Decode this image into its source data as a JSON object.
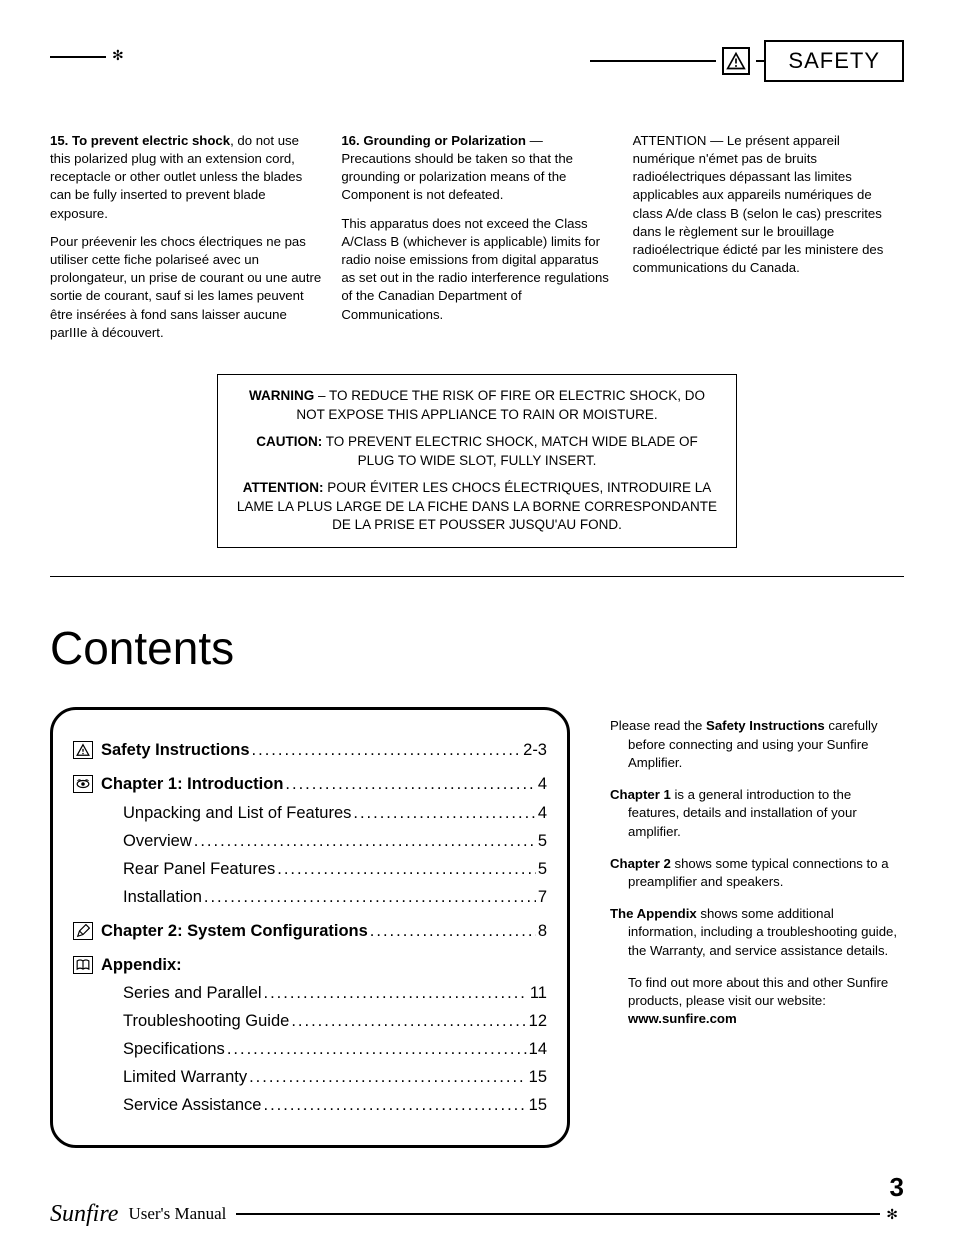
{
  "header": {
    "section_label": "SAFETY"
  },
  "safety": {
    "col1": {
      "p1_bold": "15. To prevent electric shock",
      "p1_rest": ", do not use this polarized plug with an exten­sion cord, receptacle or other outlet unless the blades can be fully inserted to prevent blade exposure.",
      "p2": "Pour préevenir les chocs électriques ne pas utiliser cette fiche polariseé avec un prolongateur, un prise de courant ou une autre sortie de cou­rant, sauf si les lames peuvent être insérées à fond sans laisser aucune parIIIe à découvert."
    },
    "col2": {
      "p1_bold": "16. Grounding or Polarization",
      "p1_rest": " — Precautions should be taken so that the grounding or polarization means of the Component is not defeated.",
      "p2": "This apparatus does not exceed the Class A/Class B (whichever is ap­plicable) limits for radio noise emissions from digital apparatus as set out in the radio interference regulations of the Ca­nadian Department of Communications."
    },
    "col3": {
      "p1": "ATTENTION — Le présent appar­eil numérique n'émet pas de bruits radioélectriques dépassant las limites applicables aux appareils numériques de class A/de class B (selon le cas) prescrites dans le règlement sur le brouillage radioélectrique édicté par les ministere des communications du Canada."
    }
  },
  "warning_box": {
    "line1_bold": "WARNING",
    "line1_rest": " – TO REDUCE THE RISK OF FIRE OR ELECTRIC SHOCK, DO NOT EXPOSE THIS APPLIANCE TO RAIN OR MOISTURE.",
    "line2_bold": "CAUTION:",
    "line2_rest": " TO PREVENT ELECTRIC SHOCK, MATCH WIDE BLADE OF PLUG TO WIDE SLOT, FULLY INSERT.",
    "line3_bold": "ATTENTION:",
    "line3_rest": " POUR ÉVITER LES CHOCS ÉLECTRIQUES, INTRO­DUIRE LA LAME LA PLUS LARGE DE LA FICHE DANS LA BORNE CORRESPONDANTE DE LA PRISE ET POUSSER JUSQU'AU FOND."
  },
  "contents": {
    "heading": "Contents",
    "items": [
      {
        "icon": "warning",
        "label": "Safety Instructions",
        "page": "2-3",
        "bold": true,
        "indent": 0
      },
      {
        "icon": "eye",
        "label": "Chapter 1: Introduction",
        "page": "4",
        "bold": true,
        "indent": 0,
        "section": true
      },
      {
        "icon": "",
        "label": "Unpacking and List of Features",
        "page": "4",
        "bold": false,
        "indent": 2
      },
      {
        "icon": "",
        "label": "Overview",
        "page": "5",
        "bold": false,
        "indent": 2
      },
      {
        "icon": "",
        "label": "Rear Panel Features",
        "page": "5",
        "bold": false,
        "indent": 2
      },
      {
        "icon": "",
        "label": "Installation",
        "page": "7",
        "bold": false,
        "indent": 2
      },
      {
        "icon": "pencil",
        "label": "Chapter 2: System Configurations",
        "page": "8",
        "bold": true,
        "indent": 0,
        "section": true
      },
      {
        "icon": "book",
        "label": "Appendix:",
        "page": "",
        "bold": true,
        "indent": 0,
        "section": true
      },
      {
        "icon": "",
        "label": "Series and Parallel",
        "page": "11",
        "bold": false,
        "indent": 2
      },
      {
        "icon": "",
        "label": "Troubleshooting Guide",
        "page": "12",
        "bold": false,
        "indent": 2
      },
      {
        "icon": "",
        "label": "Specifications",
        "page": "14",
        "bold": false,
        "indent": 2
      },
      {
        "icon": "",
        "label": "Limited Warranty",
        "page": "15",
        "bold": false,
        "indent": 2
      },
      {
        "icon": "",
        "label": "Service Assistance",
        "page": "15",
        "bold": false,
        "indent": 2
      }
    ]
  },
  "sidebar": {
    "p1a": "Please read the ",
    "p1b": "Safety Instructions",
    "p1c": " carefully before connecting and using your Sunfire Amplifier.",
    "p2a": "Chapter 1",
    "p2b": " is a general introduction to the features, details and installa­tion of your amplifier.",
    "p3a": "Chapter 2",
    "p3b": " shows some typical con­nections to a preamplifier and speakers.",
    "p4a": "The Appendix",
    "p4b": " shows some addition­al information, including a trouble­shooting guide, the Warranty, and service assistance details.",
    "p5a": "To find out more about this and other Sunfire products, please visit our website: ",
    "p5b": "www.sunfire.com"
  },
  "footer": {
    "brand": "Sunfire",
    "manual": "User's Manual",
    "page_number": "3"
  },
  "colors": {
    "text": "#000000",
    "bg": "#ffffff",
    "border": "#000000"
  }
}
